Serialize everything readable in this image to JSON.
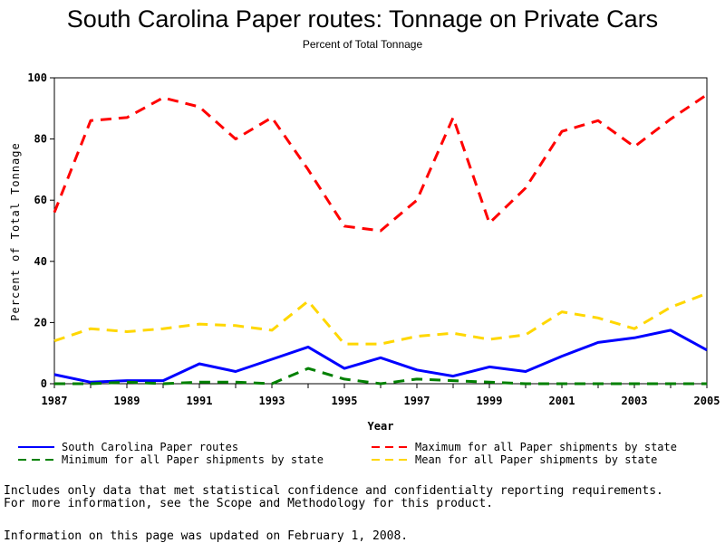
{
  "chart_data": {
    "type": "line",
    "title": "South Carolina Paper routes: Tonnage on Private Cars",
    "subtitle": "Percent of Total Tonnage",
    "xlabel": "Year",
    "ylabel": "Percent of Total Tonnage",
    "xlim": [
      1987,
      2005
    ],
    "ylim": [
      0,
      100
    ],
    "x_ticks": [
      1987,
      1989,
      1991,
      1993,
      1995,
      1997,
      1999,
      2001,
      2003,
      2005
    ],
    "y_ticks": [
      0,
      20,
      40,
      60,
      80,
      100
    ],
    "grid": false,
    "legend_position": "bottom",
    "x": [
      1987,
      1988,
      1989,
      1990,
      1991,
      1992,
      1993,
      1994,
      1995,
      1996,
      1997,
      1998,
      1999,
      2000,
      2001,
      2002,
      2003,
      2004,
      2005
    ],
    "series": [
      {
        "name": "South Carolina Paper routes",
        "color": "#0000ff",
        "style": "solid",
        "values": [
          3,
          0.5,
          1,
          1,
          6.5,
          4,
          8,
          12,
          5,
          8.5,
          4.5,
          2.5,
          5.5,
          4,
          9,
          13.5,
          15,
          17.5,
          11
        ]
      },
      {
        "name": "Maximum for all Paper shipments by state",
        "color": "#ff0000",
        "style": "dashed",
        "values": [
          56,
          86,
          87,
          93.5,
          90.5,
          80,
          87,
          70,
          51.5,
          50,
          60,
          87,
          52.5,
          64,
          82.5,
          86,
          77.5,
          86.5,
          94.5
        ]
      },
      {
        "name": "Minimum for all Paper shipments by state",
        "color": "#008000",
        "style": "dashed",
        "values": [
          0,
          0,
          0.5,
          0,
          0.5,
          0.5,
          0,
          5,
          1.5,
          0,
          1.5,
          1,
          0.5,
          0,
          0,
          0,
          0,
          0,
          0
        ]
      },
      {
        "name": "Mean for all Paper shipments by state",
        "color": "#ffd700",
        "style": "dashed",
        "values": [
          14,
          18,
          17,
          18,
          19.5,
          19,
          17.5,
          27,
          13,
          13,
          15.5,
          16.5,
          14.5,
          16,
          23.5,
          21.5,
          18,
          25,
          29.5
        ]
      }
    ]
  },
  "footnotes": {
    "line1": "Includes only data that met statistical confidence and confidentialty reporting requirements.",
    "line2": "For more information, see the Scope and Methodology for this product.",
    "line3": "Information on this page was updated on February 1, 2008."
  }
}
